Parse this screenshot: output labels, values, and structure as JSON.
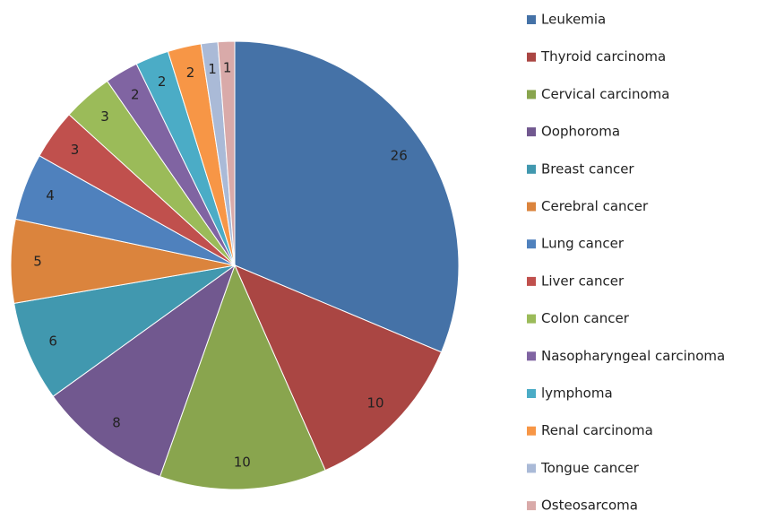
{
  "chart_data": {
    "type": "pie",
    "categories": [
      "Leukemia",
      "Thyroid carcinoma",
      "Cervical carcinoma",
      "Oophoroma",
      "Breast cancer",
      "Cerebral cancer",
      "Lung cancer",
      "Liver cancer",
      "Colon cancer",
      "Nasopharyngeal  carcinoma",
      "lymphoma",
      "Renal carcinoma",
      "Tongue cancer",
      "Osteosarcoma"
    ],
    "values": [
      26,
      10,
      10,
      8,
      6,
      5,
      4,
      3,
      3,
      2,
      2,
      2,
      1,
      1
    ],
    "colors": [
      "#4572A7",
      "#AA4643",
      "#89A54E",
      "#71588F",
      "#4198AF",
      "#DB843D",
      "#4F81BD",
      "#C0504D",
      "#9BBB59",
      "#8064A2",
      "#4BACC6",
      "#F79646",
      "#AABAD7",
      "#D9AAA9"
    ]
  }
}
